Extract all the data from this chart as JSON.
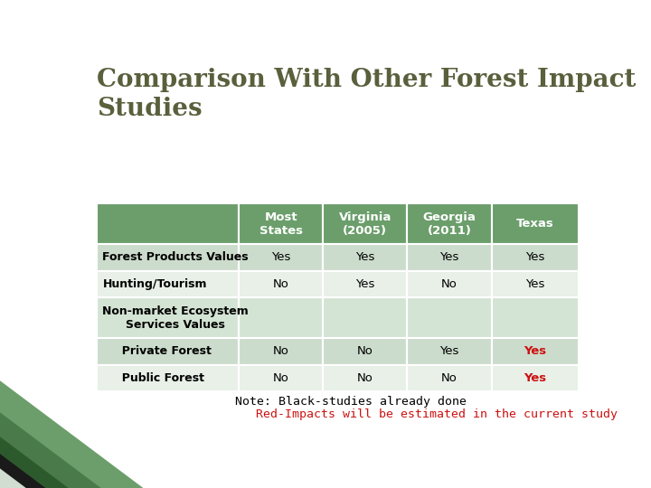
{
  "title": "Comparison With Other Forest Impact\nStudies",
  "title_color": "#5a5f3c",
  "title_fontsize": 20,
  "col_headers": [
    "Most\nStates",
    "Virginia\n(2005)",
    "Georgia\n(2011)",
    "Texas"
  ],
  "row_headers": [
    "Forest Products Values",
    "Hunting/Tourism",
    "Non-market Ecosystem\nServices Values",
    "  Private Forest",
    "  Public Forest"
  ],
  "cell_data": [
    [
      "Yes",
      "Yes",
      "Yes",
      "Yes"
    ],
    [
      "No",
      "Yes",
      "No",
      "Yes"
    ],
    [
      "",
      "",
      "",
      ""
    ],
    [
      "No",
      "No",
      "Yes",
      "Yes"
    ],
    [
      "No",
      "No",
      "No",
      "Yes"
    ]
  ],
  "cell_colors_texas": [
    false,
    false,
    false,
    true,
    true
  ],
  "header_bg": "#6b9e6b",
  "header_text": "#ffffff",
  "row_bg_even": "#ccdccc",
  "row_bg_odd": "#e8f0e8",
  "row_bg_tall": "#d4e4d4",
  "note_black": "Note: Black-studies already done",
  "note_red": "Red-Impacts will be estimated in the current study",
  "note_fontsize": 9.5,
  "bg_color": "#ffffff",
  "tri_dark_green": "#2d5a2d",
  "tri_light_green": "#6b9e6b",
  "tri_black": "#1a1a1a",
  "tri_light": "#c8d8c8"
}
